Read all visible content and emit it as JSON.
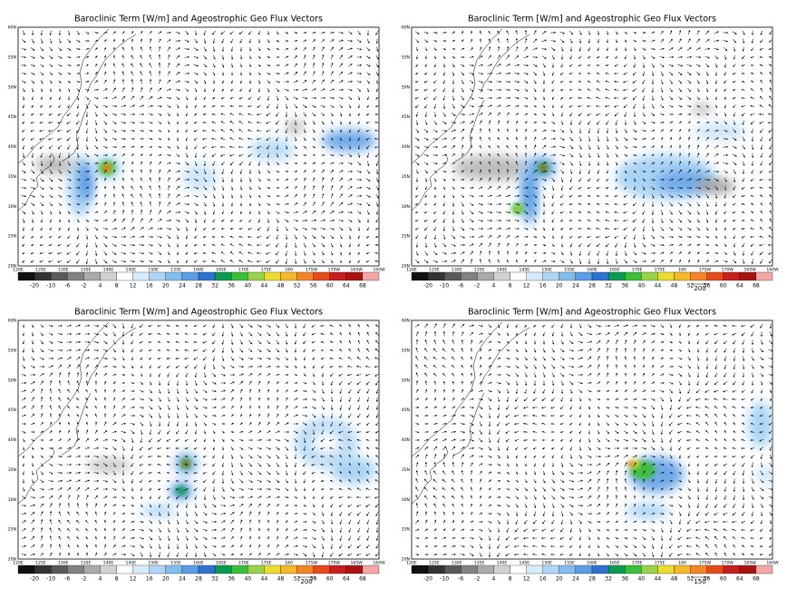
{
  "panels": [
    {
      "title": "Baroclinic Term [W/m] and Ageostrophic Geo Flux Vectors"
    },
    {
      "title": "Baroclinic Term [W/m] and Ageostrophic Geo Flux Vectors",
      "vector_ref": "200"
    },
    {
      "title": "Baroclinic Term [W/m] and Ageostrophic Geo Flux Vectors",
      "vector_ref": "200"
    },
    {
      "title": "Baroclinic Term [W/m] and Ageostrophic Geo Flux Vectors",
      "vector_ref": "150"
    }
  ],
  "lat_labels": [
    "60N",
    "55N",
    "50N",
    "45N",
    "40N",
    "35N",
    "30N",
    "25N",
    "20N"
  ],
  "lon_labels": [
    "120E",
    "125E",
    "130E",
    "135E",
    "140E",
    "145E",
    "150E",
    "155E",
    "160E",
    "165E",
    "170E",
    "175E",
    "180",
    "175W",
    "170W",
    "165W",
    "160W"
  ],
  "colorbar": {
    "labels": [
      -20,
      -10,
      -6,
      -2,
      4,
      8,
      12,
      16,
      20,
      24,
      28,
      32,
      36,
      40,
      44,
      48,
      52,
      56,
      60,
      64,
      68
    ],
    "colors": [
      "#111111",
      "#333333",
      "#5a5a5a",
      "#828282",
      "#aaaaaa",
      "#d2d2d2",
      "#ffffff",
      "#d7ecfb",
      "#aed6f7",
      "#82bdf0",
      "#5a9fe6",
      "#2e72d2",
      "#0c9a50",
      "#3cbe3c",
      "#9bd24c",
      "#eadc30",
      "#f4b82a",
      "#f28528",
      "#e44c1e",
      "#c81e1e",
      "#a81414",
      "#f3a6a6"
    ]
  }
}
